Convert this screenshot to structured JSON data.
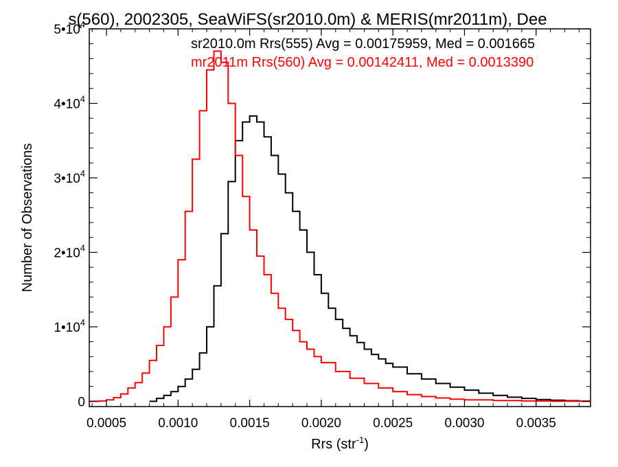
{
  "colors": {
    "background": "#ffffff",
    "series_1": "#000000",
    "series_2": "#ff0000",
    "axis": "#000000"
  },
  "chart_data": {
    "type": "line",
    "title": "s(560), 2002305, SeaWiFS(sr2010.0m) & MERIS(mr2011m), Dee",
    "xlabel": "Rrs (str",
    "xlabel_sup": "-1",
    "xlabel_tail": ")",
    "ylabel": "Number of Observations",
    "xlim": [
      0.00038,
      0.00388
    ],
    "ylim": [
      -700,
      50000
    ],
    "x_ticks": [
      {
        "value": 0.0005,
        "label": "0.0005"
      },
      {
        "value": 0.001,
        "label": "0.0010"
      },
      {
        "value": 0.0015,
        "label": "0.0015"
      },
      {
        "value": 0.002,
        "label": "0.0020"
      },
      {
        "value": 0.0025,
        "label": "0.0025"
      },
      {
        "value": 0.003,
        "label": "0.0030"
      },
      {
        "value": 0.0035,
        "label": "0.0035"
      }
    ],
    "y_ticks": [
      {
        "value": 0,
        "label": "0",
        "exp": ""
      },
      {
        "value": 10000,
        "label": "1•10",
        "exp": "4"
      },
      {
        "value": 20000,
        "label": "2•10",
        "exp": "4"
      },
      {
        "value": 30000,
        "label": "3•10",
        "exp": "4"
      },
      {
        "value": 40000,
        "label": "4•10",
        "exp": "4"
      },
      {
        "value": 50000,
        "label": "5•10",
        "exp": "4"
      }
    ],
    "legend_placement": "top-right",
    "grid": false,
    "series": [
      {
        "name": "sr2010.0m Rrs(555) Avg = 0.00175959, Med = 0.001665",
        "color": "#000000",
        "x": [
          0.0008,
          0.00085,
          0.0009,
          0.00095,
          0.001,
          0.00105,
          0.0011,
          0.00115,
          0.0012,
          0.00125,
          0.0013,
          0.00135,
          0.0014,
          0.00145,
          0.0015,
          0.00155,
          0.0016,
          0.00165,
          0.0017,
          0.00175,
          0.0018,
          0.00185,
          0.0019,
          0.00195,
          0.002,
          0.00205,
          0.0021,
          0.00215,
          0.0022,
          0.00225,
          0.0023,
          0.00235,
          0.0024,
          0.00245,
          0.0025,
          0.0026,
          0.0027,
          0.0028,
          0.0029,
          0.003,
          0.0031,
          0.0032,
          0.0033,
          0.0034,
          0.0035,
          0.0036,
          0.0037,
          0.0038,
          0.00388
        ],
        "y": [
          0,
          400,
          800,
          1300,
          2000,
          3000,
          4300,
          6500,
          10000,
          15500,
          22500,
          29500,
          35000,
          37500,
          38300,
          37500,
          35500,
          33000,
          30500,
          28000,
          25500,
          23000,
          20000,
          17000,
          14500,
          12500,
          11000,
          9800,
          8800,
          7900,
          7000,
          6300,
          5700,
          5100,
          4600,
          3700,
          3000,
          2400,
          1900,
          1500,
          1100,
          800,
          550,
          400,
          250,
          150,
          80,
          30,
          0
        ]
      },
      {
        "name": "mr2011m Rrs(560) Avg = 0.00142411, Med = 0.0013390",
        "color": "#ff0000",
        "x": [
          0.00038,
          0.00045,
          0.0005,
          0.00055,
          0.0006,
          0.00065,
          0.0007,
          0.00075,
          0.0008,
          0.00085,
          0.0009,
          0.00095,
          0.001,
          0.00105,
          0.0011,
          0.00115,
          0.0012,
          0.00125,
          0.00128,
          0.0013,
          0.00135,
          0.0014,
          0.00145,
          0.0015,
          0.00155,
          0.0016,
          0.00165,
          0.0017,
          0.00175,
          0.0018,
          0.00185,
          0.0019,
          0.00195,
          0.002,
          0.0021,
          0.0022,
          0.0023,
          0.0024,
          0.0025,
          0.0026,
          0.0027,
          0.0028,
          0.0029,
          0.003,
          0.0032,
          0.0034,
          0.0036,
          0.00388
        ],
        "y": [
          0,
          50,
          200,
          500,
          1000,
          1800,
          2500,
          3800,
          5500,
          7500,
          10000,
          14000,
          19000,
          25500,
          32500,
          39000,
          44500,
          47000,
          47000,
          45500,
          40000,
          33000,
          27500,
          23000,
          19500,
          17000,
          14500,
          12500,
          11000,
          9500,
          8000,
          7000,
          6000,
          5200,
          4000,
          3100,
          2400,
          1800,
          1300,
          900,
          650,
          450,
          300,
          200,
          100,
          50,
          20,
          0
        ]
      }
    ]
  }
}
